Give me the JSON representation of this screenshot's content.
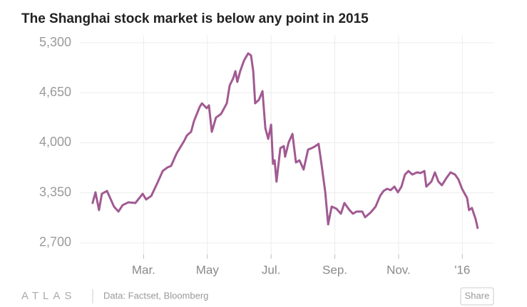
{
  "chart_data": {
    "type": "line",
    "title": "The Shanghai stock market is below any point in 2015",
    "source": "Data: Factset, Bloomberg",
    "brand": "ATLAS",
    "share": "Share",
    "x": [
      0.4,
      0.49,
      0.6,
      0.69,
      0.85,
      1.07,
      1.21,
      1.34,
      1.52,
      1.74,
      1.9,
      1.97,
      2.08,
      2.24,
      2.42,
      2.6,
      2.75,
      2.86,
      3.04,
      3.27,
      3.36,
      3.49,
      3.58,
      3.76,
      3.83,
      3.98,
      4.05,
      4.14,
      4.27,
      4.43,
      4.61,
      4.7,
      4.81,
      4.88,
      4.94,
      5.03,
      5.15,
      5.28,
      5.37,
      5.44,
      5.5,
      5.62,
      5.73,
      5.82,
      5.91,
      6.0,
      6.06,
      6.11,
      6.17,
      6.29,
      6.4,
      6.44,
      6.55,
      6.67,
      6.78,
      6.89,
      7.02,
      7.16,
      7.27,
      7.36,
      7.49,
      7.58,
      7.7,
      7.79,
      7.9,
      8.05,
      8.19,
      8.3,
      8.46,
      8.57,
      8.68,
      8.86,
      8.95,
      9.13,
      9.28,
      9.42,
      9.53,
      9.64,
      9.75,
      9.87,
      9.98,
      10.09,
      10.2,
      10.31,
      10.43,
      10.58,
      10.69,
      10.81,
      10.87,
      11.03,
      11.14,
      11.25,
      11.36,
      11.5,
      11.63,
      11.77,
      11.88,
      11.99,
      12.15,
      12.21,
      12.3,
      12.42,
      12.48
    ],
    "series": [
      {
        "color": "#a15a92",
        "values": [
          3218,
          3357,
          3126,
          3338,
          3375,
          3172,
          3107,
          3190,
          3227,
          3218,
          3301,
          3338,
          3264,
          3310,
          3468,
          3634,
          3681,
          3699,
          3866,
          4023,
          4097,
          4143,
          4282,
          4467,
          4513,
          4449,
          4486,
          4143,
          4328,
          4375,
          4513,
          4745,
          4838,
          4930,
          4791,
          4930,
          5069,
          5162,
          5134,
          4930,
          4513,
          4560,
          4671,
          4190,
          4051,
          4236,
          3727,
          3773,
          3496,
          3931,
          3958,
          3819,
          4004,
          4116,
          3745,
          3773,
          3653,
          3912,
          3930,
          3949,
          3986,
          3727,
          3357,
          2940,
          3172,
          3144,
          3079,
          3218,
          3126,
          3079,
          3107,
          3107,
          3033,
          3098,
          3172,
          3310,
          3375,
          3403,
          3385,
          3431,
          3357,
          3431,
          3588,
          3634,
          3588,
          3616,
          3607,
          3634,
          3431,
          3496,
          3616,
          3496,
          3449,
          3542,
          3616,
          3588,
          3523,
          3403,
          3283,
          3126,
          3154,
          3005,
          2894
        ]
      }
    ],
    "xlim": [
      0,
      13
    ],
    "xticks": [
      {
        "value": 2,
        "label": "Mar."
      },
      {
        "value": 4,
        "label": "May"
      },
      {
        "value": 6,
        "label": "Jul."
      },
      {
        "value": 8,
        "label": "Sep."
      },
      {
        "value": 10,
        "label": "Nov."
      },
      {
        "value": 12,
        "label": "'16"
      }
    ],
    "ylim": [
      2550,
      5400
    ],
    "yticks": [
      {
        "value": 2700,
        "label": "2,700"
      },
      {
        "value": 3350,
        "label": "3,350"
      },
      {
        "value": 4000,
        "label": "4,000"
      },
      {
        "value": 4650,
        "label": "4,650"
      },
      {
        "value": 5300,
        "label": "5,300"
      }
    ],
    "grid": true
  }
}
